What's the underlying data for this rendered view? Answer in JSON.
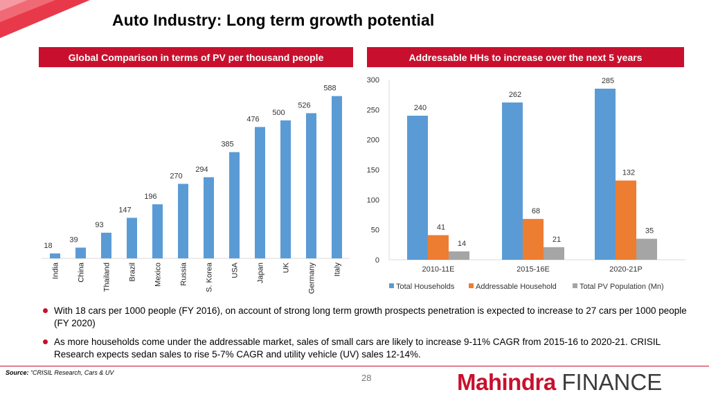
{
  "title": "Auto Industry:  Long term growth potential",
  "left_banner": "Global Comparison in terms of PV per thousand people",
  "right_banner": "Addressable HHs to increase over the next 5 years",
  "colors": {
    "accent": "#c8102e",
    "bar_blue": "#5b9bd5",
    "bar_orange": "#ed7d31",
    "bar_gray": "#a5a5a5"
  },
  "chart_data": [
    {
      "type": "bar",
      "categories": [
        "India",
        "China",
        "Thailand",
        "Brazil",
        "Mexico",
        "Russia",
        "S. Korea",
        "USA",
        "Japan",
        "UK",
        "Germany",
        "Italy"
      ],
      "values": [
        18,
        39,
        93,
        147,
        196,
        270,
        294,
        385,
        476,
        500,
        526,
        588
      ],
      "title": "Global Comparison in terms of PV per thousand people",
      "ylim": [
        0,
        600
      ],
      "grid": false,
      "data_labels": true
    },
    {
      "type": "bar",
      "categories": [
        "2010-11E",
        "2015-16E",
        "2020-21P"
      ],
      "series": [
        {
          "name": "Total Households",
          "values": [
            240,
            262,
            285
          ]
        },
        {
          "name": "Addressable Household",
          "values": [
            41,
            68,
            132
          ]
        },
        {
          "name": "Total PV Population (Mn)",
          "values": [
            14,
            21,
            35
          ]
        }
      ],
      "yticks": [
        0,
        50,
        100,
        150,
        200,
        250,
        300
      ],
      "ylim": [
        0,
        300
      ],
      "legend": "bottom",
      "grid": false,
      "data_labels": true
    }
  ],
  "bullets": [
    "With 18 cars per 1000 people (FY 2016), on account of strong long term growth prospects penetration is expected to increase to 27 cars per 1000 people (FY 2020)",
    "As more households come under the addressable market, sales of small cars are likely to increase 9-11% CAGR from 2015-16 to 2020-21. CRISIL Research expects sedan sales to rise 5-7% CAGR and utility vehicle (UV) sales 12-14%."
  ],
  "source": {
    "label": "Source:",
    "text": "“CRISIL Research, Cars & UV"
  },
  "page_number": "28",
  "logo": {
    "brand": "Mahindra",
    "suffix": "FINANCE"
  }
}
